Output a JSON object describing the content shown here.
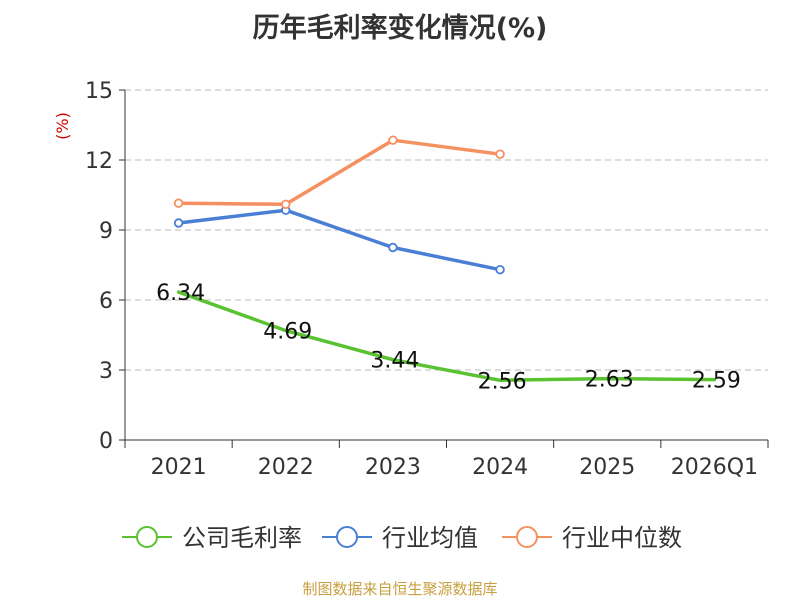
{
  "chart_data": {
    "type": "line",
    "title": "历年毛利率变化情况(%)",
    "ylabel": "(%)",
    "xlabel": "",
    "categories": [
      "2021",
      "2022",
      "2023",
      "2024",
      "2025",
      "2026Q1"
    ],
    "yticks": [
      "0",
      "3",
      "6",
      "9",
      "12",
      "15"
    ],
    "ylim": [
      0,
      15
    ],
    "grid": true,
    "legend_position": "bottom",
    "series": [
      {
        "name": "公司毛利率",
        "color": "#5ac231",
        "values": [
          6.34,
          4.69,
          3.44,
          2.56,
          2.63,
          2.59
        ],
        "labels": [
          "6.34",
          "4.69",
          "3.44",
          "2.56",
          "2.63",
          "2.59"
        ]
      },
      {
        "name": "行业均值",
        "color": "#4a7fd6",
        "values": [
          9.3,
          9.85,
          8.25,
          7.3,
          null,
          null
        ]
      },
      {
        "name": "行业中位数",
        "color": "#f59060",
        "values": [
          10.15,
          10.1,
          12.85,
          12.25,
          null,
          null
        ]
      }
    ]
  },
  "source": "制图数据来自恒生聚源数据库"
}
